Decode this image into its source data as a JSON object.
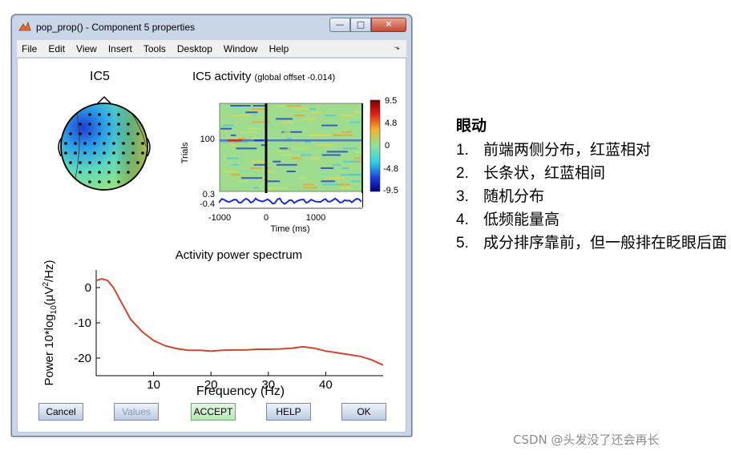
{
  "window": {
    "title": "pop_prop() - Component 5 properties",
    "buttons": {
      "minimize": "—",
      "maximize": "□",
      "close": "✕"
    }
  },
  "menu": [
    "File",
    "Edit",
    "View",
    "Insert",
    "Tools",
    "Desktop",
    "Window",
    "Help"
  ],
  "topo": {
    "title": "IC5"
  },
  "activity": {
    "title": "IC5 activity",
    "subtitle": "(global offset -0.014)",
    "ylabel": "Trials",
    "xlabel": "Time (ms)",
    "y_tick": "100",
    "erp_ticks": [
      "0.3",
      "-0.4"
    ],
    "x_ticks": [
      "-1000",
      "0",
      "1000"
    ],
    "colorbar_ticks": [
      "9.5",
      "4.8",
      "0",
      "-4.8",
      "-9.5"
    ]
  },
  "chart_data": {
    "type": "line",
    "title": "Activity power spectrum",
    "xlabel": "Frequency (Hz)",
    "ylabel": "Power 10*log10(μV²/Hz)",
    "xlim": [
      0,
      50
    ],
    "ylim": [
      -25,
      5
    ],
    "x_ticks": [
      10,
      20,
      30,
      40
    ],
    "y_ticks": [
      0,
      -10,
      -20
    ],
    "series": [
      {
        "color": "#d0452f",
        "x": [
          0,
          1,
          2,
          3,
          4,
          5,
          6,
          8,
          10,
          12,
          14,
          16,
          18,
          20,
          22,
          24,
          26,
          28,
          30,
          32,
          34,
          36,
          38,
          40,
          42,
          44,
          46,
          48,
          50
        ],
        "y": [
          2,
          2.5,
          2,
          0,
          -3,
          -6,
          -9,
          -12.5,
          -15,
          -16.5,
          -17.3,
          -17.8,
          -17.8,
          -18,
          -17.8,
          -17.7,
          -17.7,
          -17.5,
          -17.5,
          -17.4,
          -17.2,
          -16.8,
          -17.2,
          -18,
          -18.5,
          -19,
          -19.5,
          -20.5,
          -22
        ]
      }
    ]
  },
  "buttons": {
    "cancel": "Cancel",
    "values": "Values",
    "accept": "ACCEPT",
    "help": "HELP",
    "ok": "OK"
  },
  "notes": {
    "title": "眼动",
    "items": [
      {
        "num": "1.",
        "text": "前端两侧分布，红蓝相对"
      },
      {
        "num": "2.",
        "text": "长条状，红蓝相间"
      },
      {
        "num": "3.",
        "text": "随机分布"
      },
      {
        "num": "4.",
        "text": "低频能量高"
      },
      {
        "num": "5.",
        "text": "成分排序靠前，但一般排在眨眼后面"
      }
    ]
  },
  "watermark": "CSDN @头发没了还会再长",
  "colors": {
    "accent_red": "#d0452f",
    "erp_blue": "#1a2bd6",
    "window_frame": "#c9d6e8"
  }
}
